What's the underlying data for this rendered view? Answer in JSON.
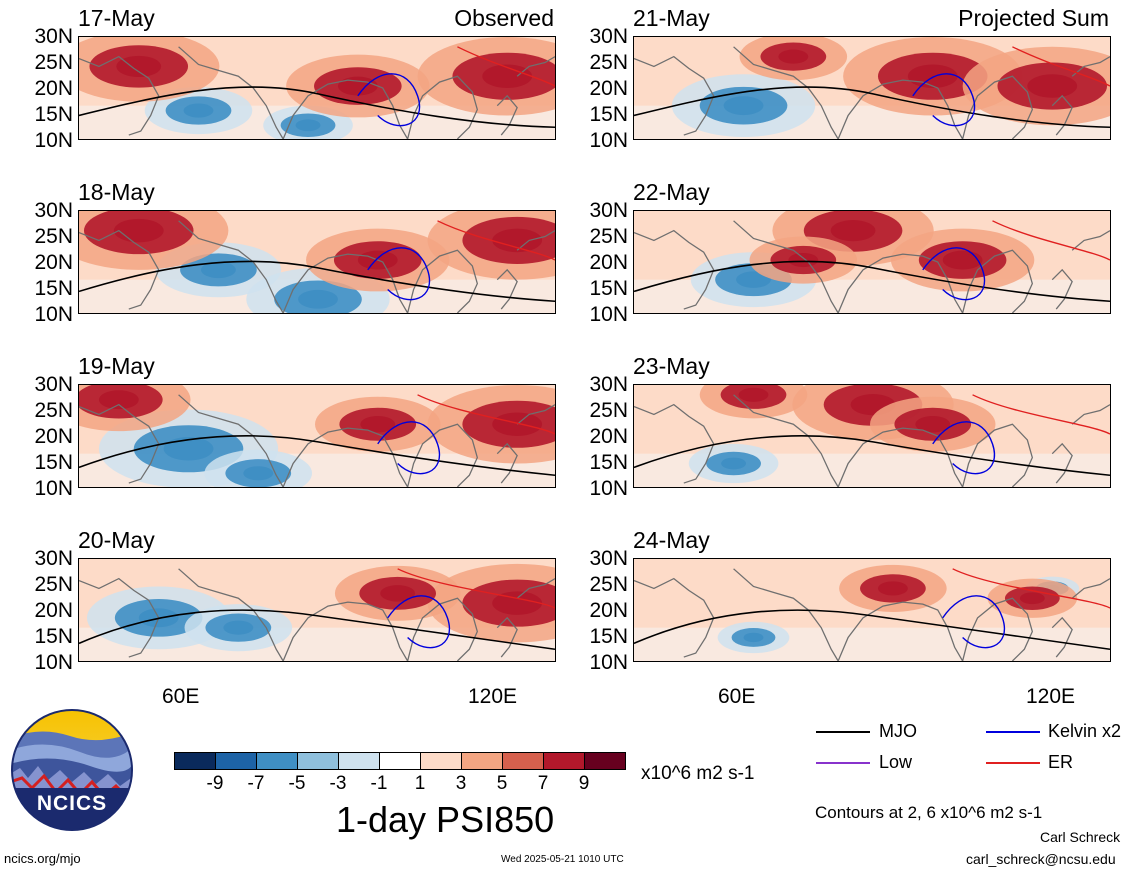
{
  "panels_observed": [
    {
      "date": "17-May",
      "tag": "Observed"
    },
    {
      "date": "18-May",
      "tag": ""
    },
    {
      "date": "19-May",
      "tag": ""
    },
    {
      "date": "20-May",
      "tag": ""
    }
  ],
  "panels_projected": [
    {
      "date": "21-May",
      "tag": "Projected Sum"
    },
    {
      "date": "22-May",
      "tag": ""
    },
    {
      "date": "23-May",
      "tag": ""
    },
    {
      "date": "24-May",
      "tag": ""
    }
  ],
  "lat_labels": [
    "30N",
    "25N",
    "20N",
    "15N",
    "10N"
  ],
  "lon_labels": [
    "60E",
    "120E"
  ],
  "colorbar": {
    "colors": [
      "#0a2a5c",
      "#1d63a6",
      "#3f8fc4",
      "#8fc0dd",
      "#cfe2ef",
      "#ffffff",
      "#fddbc8",
      "#f3a582",
      "#d6604d",
      "#b2182b",
      "#67001f"
    ],
    "labels": [
      "-9",
      "-7",
      "-5",
      "-3",
      "-1",
      "1",
      "3",
      "5",
      "7",
      "9"
    ],
    "units": "x10^6 m2 s-1"
  },
  "title": "1-day PSI850",
  "legend": [
    {
      "label": "MJO",
      "color": "#000000"
    },
    {
      "label": "Kelvin x2",
      "color": "#0000dd"
    },
    {
      "label": "Low",
      "color": "#8833cc"
    },
    {
      "label": "ER",
      "color": "#e02020"
    }
  ],
  "contour_note": "Contours at 2, 6 x10^6 m2 s-1",
  "author": "Carl Schreck",
  "email": "carl_schreck@ncsu.edu",
  "site": "ncics.org/mjo",
  "timestamp": "Wed 2025-05-21 1010 UTC",
  "logo_text": "NCICS"
}
